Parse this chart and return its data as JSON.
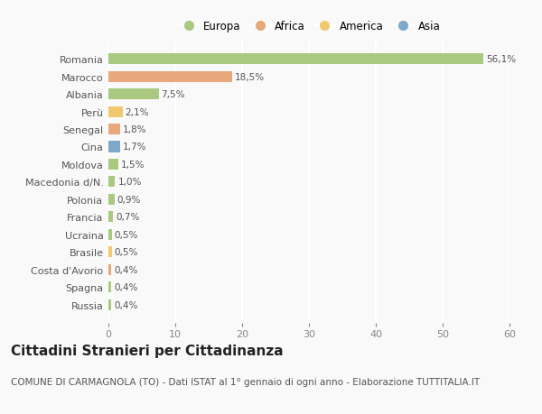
{
  "countries": [
    "Romania",
    "Marocco",
    "Albania",
    "Perù",
    "Senegal",
    "Cina",
    "Moldova",
    "Macedonia d/N.",
    "Polonia",
    "Francia",
    "Ucraina",
    "Brasile",
    "Costa d'Avorio",
    "Spagna",
    "Russia"
  ],
  "values": [
    56.1,
    18.5,
    7.5,
    2.1,
    1.8,
    1.7,
    1.5,
    1.0,
    0.9,
    0.7,
    0.5,
    0.5,
    0.4,
    0.4,
    0.4
  ],
  "labels": [
    "56,1%",
    "18,5%",
    "7,5%",
    "2,1%",
    "1,8%",
    "1,7%",
    "1,5%",
    "1,0%",
    "0,9%",
    "0,7%",
    "0,5%",
    "0,5%",
    "0,4%",
    "0,4%",
    "0,4%"
  ],
  "continents": [
    "Europa",
    "Africa",
    "Europa",
    "America",
    "Africa",
    "Asia",
    "Europa",
    "Europa",
    "Europa",
    "Europa",
    "Europa",
    "America",
    "Africa",
    "Europa",
    "Europa"
  ],
  "continent_colors": {
    "Europa": "#a8c97f",
    "Africa": "#e8a87c",
    "America": "#f0c96e",
    "Asia": "#7ea8c9"
  },
  "legend_order": [
    "Europa",
    "Africa",
    "America",
    "Asia"
  ],
  "title": "Cittadini Stranieri per Cittadinanza",
  "subtitle": "COMUNE DI CARMAGNOLA (TO) - Dati ISTAT al 1° gennaio di ogni anno - Elaborazione TUTTITALIA.IT",
  "xlim": [
    0,
    60
  ],
  "xticks": [
    0,
    10,
    20,
    30,
    40,
    50,
    60
  ],
  "background_color": "#f9f9f9",
  "grid_color": "#ffffff",
  "title_fontsize": 11,
  "subtitle_fontsize": 7.5,
  "bar_height": 0.62
}
